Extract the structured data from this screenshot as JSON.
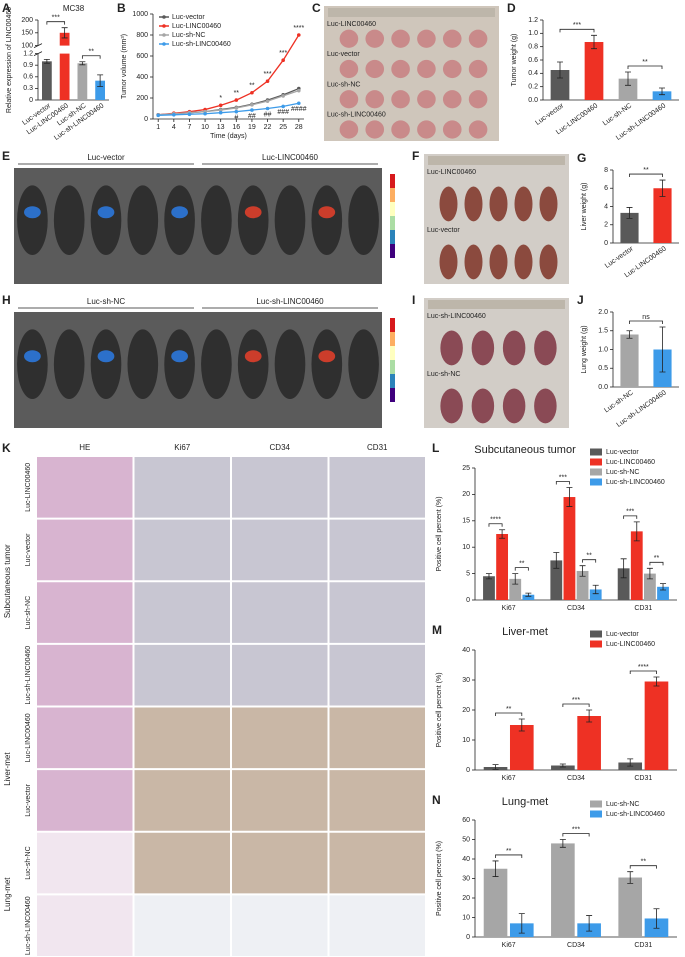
{
  "chart_data": [
    {
      "panel": "A",
      "type": "bar",
      "title": "MC38",
      "ylabel": "Relative expression of LINC00460",
      "categories": [
        "Luc-vector",
        "Luc-LINC00460",
        "Luc-sh-NC",
        "Luc-sh-LINC00460"
      ],
      "values": [
        1.0,
        150,
        0.95,
        0.5
      ],
      "errors": [
        0.05,
        20,
        0.04,
        0.15
      ],
      "colors": [
        "#595959",
        "#ee3124",
        "#a6a6a6",
        "#3d9be9"
      ],
      "ylim": [
        0,
        1.2
      ],
      "yticks": [
        0,
        0.3,
        0.6,
        0.9,
        1.2
      ],
      "y_break": {
        "ylim": [
          100,
          200
        ],
        "yticks": [
          100,
          150,
          200
        ]
      },
      "significance": [
        "***",
        "**"
      ]
    },
    {
      "panel": "B",
      "type": "line",
      "ylabel": "Tumor volume (mm³)",
      "xlabel": "Time (days)",
      "x": [
        1,
        4,
        7,
        10,
        13,
        16,
        19,
        22,
        25,
        28
      ],
      "series": [
        {
          "name": "Luc-vector",
          "color": "#595959",
          "values": [
            40,
            50,
            60,
            70,
            90,
            110,
            140,
            180,
            230,
            290
          ]
        },
        {
          "name": "Luc-LINC00460",
          "color": "#ee3124",
          "values": [
            40,
            55,
            70,
            90,
            130,
            180,
            250,
            360,
            560,
            800
          ]
        },
        {
          "name": "Luc-sh-NC",
          "color": "#a6a6a6",
          "values": [
            40,
            50,
            60,
            70,
            85,
            105,
            135,
            170,
            220,
            270
          ]
        },
        {
          "name": "Luc-sh-LINC00460",
          "color": "#3d9be9",
          "values": [
            35,
            40,
            45,
            50,
            60,
            70,
            85,
            100,
            120,
            150
          ]
        }
      ],
      "xlim": [
        0,
        29
      ],
      "xticks": [
        1,
        4,
        7,
        10,
        13,
        16,
        19,
        22,
        25,
        28
      ],
      "ylim": [
        0,
        1000
      ],
      "yticks": [
        0,
        200,
        400,
        600,
        800,
        1000
      ],
      "significance": [
        null,
        null,
        null,
        null,
        "*",
        "**",
        "**",
        "***",
        "***",
        "****"
      ],
      "significance_2": [
        null,
        null,
        null,
        null,
        null,
        "#",
        "##",
        "##",
        "###",
        "####"
      ]
    },
    {
      "panel": "D",
      "type": "bar",
      "ylabel": "Tumor weight (g)",
      "categories": [
        "Luc-vector",
        "Luc-LINC00460",
        "Luc-sh-NC",
        "Luc-sh-LINC00460"
      ],
      "values": [
        0.45,
        0.87,
        0.32,
        0.13
      ],
      "errors": [
        0.12,
        0.1,
        0.1,
        0.05
      ],
      "colors": [
        "#595959",
        "#ee3124",
        "#a6a6a6",
        "#3d9be9"
      ],
      "ylim": [
        0,
        1.2
      ],
      "yticks": [
        {
          "value": 0,
          "label": "0.0"
        },
        {
          "value": 0.2,
          "label": "0.2"
        },
        {
          "value": 0.4,
          "label": "0.4"
        },
        {
          "value": 0.6,
          "label": "0.6"
        },
        {
          "value": 0.8,
          "label": "0.8"
        },
        {
          "value": 1,
          "label": "1.0"
        },
        {
          "value": 1.2,
          "label": "1.2"
        }
      ],
      "significance": [
        "***",
        "**"
      ]
    },
    {
      "panel": "G",
      "type": "bar",
      "ylabel": "Liver weight (g)",
      "categories": [
        "Luc-vector",
        "Luc-LINC00460"
      ],
      "values": [
        3.3,
        6.0
      ],
      "errors": [
        0.6,
        0.9
      ],
      "colors": [
        "#595959",
        "#ee3124"
      ],
      "ylim": [
        0,
        8
      ],
      "yticks": [
        0,
        2,
        4,
        6,
        8
      ],
      "significance": [
        "**"
      ]
    },
    {
      "panel": "J",
      "type": "bar",
      "ylabel": "Lung weight (g)",
      "categories": [
        "Luc-sh-NC",
        "Luc-sh-LINC00460"
      ],
      "values": [
        1.4,
        1.0
      ],
      "errors": [
        0.1,
        0.6
      ],
      "colors": [
        "#a6a6a6",
        "#3d9be9"
      ],
      "ylim": [
        0,
        2
      ],
      "yticks": [
        {
          "value": 0,
          "label": "0.0"
        },
        {
          "value": 0.5,
          "label": "0.5"
        },
        {
          "value": 1,
          "label": "1.0"
        },
        {
          "value": 1.5,
          "label": "1.5"
        },
        {
          "value": 2,
          "label": "2.0"
        }
      ],
      "significance": [
        "ns"
      ]
    },
    {
      "panel": "L",
      "type": "grouped-bar",
      "title": "Subcutaneous tumor",
      "ylabel": "Positive cell percent (%)",
      "categories": [
        "Ki67",
        "CD34",
        "CD31"
      ],
      "series": [
        {
          "name": "Luc-vector",
          "color": "#595959",
          "values": [
            4.5,
            7.5,
            6
          ],
          "errors": [
            0.5,
            1.5,
            1.8
          ]
        },
        {
          "name": "Luc-LINC00460",
          "color": "#ee3124",
          "values": [
            12.5,
            19.5,
            13
          ],
          "errors": [
            0.8,
            1.8,
            1.8
          ]
        },
        {
          "name": "Luc-sh-NC",
          "color": "#a6a6a6",
          "values": [
            4,
            5.5,
            5
          ],
          "errors": [
            1,
            1,
            1
          ]
        },
        {
          "name": "Luc-sh-LINC00460",
          "color": "#3d9be9",
          "values": [
            1,
            2,
            2.5
          ],
          "errors": [
            0.3,
            0.8,
            0.6
          ]
        }
      ],
      "ylim": [
        0,
        25
      ],
      "yticks": [
        0,
        5,
        10,
        15,
        20,
        25
      ],
      "significance": [
        [
          "****",
          "**"
        ],
        [
          "***",
          "**"
        ],
        [
          "***",
          "**"
        ]
      ]
    },
    {
      "panel": "M",
      "type": "grouped-bar",
      "title": "Liver-met",
      "ylabel": "Positive cell percent (%)",
      "categories": [
        "Ki67",
        "CD34",
        "CD31"
      ],
      "series": [
        {
          "name": "Luc-vector",
          "color": "#595959",
          "values": [
            1,
            1.5,
            2.5
          ],
          "errors": [
            0.8,
            0.5,
            1.2
          ]
        },
        {
          "name": "Luc-LINC00460",
          "color": "#ee3124",
          "values": [
            15,
            18,
            29.5
          ],
          "errors": [
            2,
            2,
            1.5
          ]
        }
      ],
      "ylim": [
        0,
        40
      ],
      "yticks": [
        0,
        10,
        20,
        30,
        40
      ],
      "significance": [
        [
          "**"
        ],
        [
          "***"
        ],
        [
          "****"
        ]
      ]
    },
    {
      "panel": "N",
      "type": "grouped-bar",
      "title": "Lung-met",
      "ylabel": "Positive cell percent (%)",
      "categories": [
        "Ki67",
        "CD34",
        "CD31"
      ],
      "series": [
        {
          "name": "Luc-sh-NC",
          "color": "#a6a6a6",
          "values": [
            35,
            48,
            30.5
          ],
          "errors": [
            4,
            2,
            3
          ]
        },
        {
          "name": "Luc-sh-LINC00460",
          "color": "#3d9be9",
          "values": [
            7,
            7,
            9.5
          ],
          "errors": [
            5,
            4,
            5
          ]
        }
      ],
      "ylim": [
        0,
        60
      ],
      "yticks": [
        0,
        10,
        20,
        30,
        40,
        50,
        60
      ],
      "significance": [
        [
          "**"
        ],
        [
          "***"
        ],
        [
          "**"
        ]
      ]
    }
  ],
  "photos": [
    {
      "panel": "C",
      "rows": [
        "Luc-LINC00460",
        "Luc-vector",
        "Luc-sh-NC",
        "Luc-sh-LINC00460"
      ]
    },
    {
      "panel": "E",
      "columns": [
        "Luc-vector",
        "Luc-LINC00460"
      ]
    },
    {
      "panel": "F",
      "rows": [
        "Luc-LINC00460",
        "Luc-vector"
      ]
    },
    {
      "panel": "H",
      "columns": [
        "Luc-sh-NC",
        "Luc-sh-LINC00460"
      ]
    },
    {
      "panel": "I",
      "rows": [
        "Luc-sh-LINC00460",
        "Luc-sh-NC"
      ]
    }
  ],
  "histology": {
    "panel": "K",
    "columns": [
      "HE",
      "Ki67",
      "CD34",
      "CD31"
    ],
    "groups": [
      {
        "name": "Subcutaneous tumor",
        "rows": [
          "Luc-LINC00460",
          "Luc-vector",
          "Luc-sh-NC",
          "Luc-sh-LINC00460"
        ]
      },
      {
        "name": "Liver-met",
        "rows": [
          "Luc-LINC00460",
          "Luc-vector"
        ]
      },
      {
        "name": "Lung-met",
        "rows": [
          "Luc-sh-NC",
          "Luc-sh-LINC00460"
        ]
      }
    ]
  }
}
